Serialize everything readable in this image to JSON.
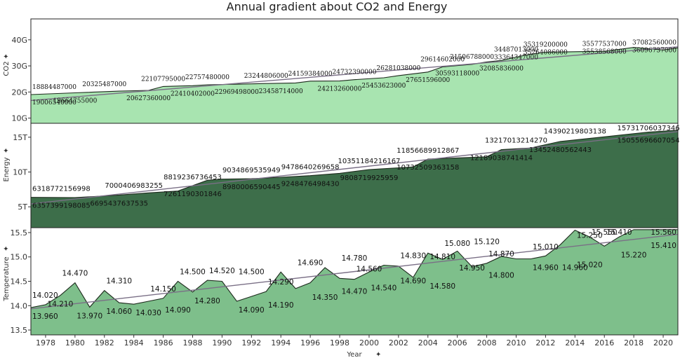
{
  "colors": {
    "co2_fill": "#a8e4b0",
    "energy_fill": "#3d6e4a",
    "temp_fill": "#7ebf8b",
    "trend": "#7a6f86"
  },
  "chart_data": {
    "type": "area",
    "title": "Annual gradient about CO2 and Energy",
    "xlabel": "Year",
    "x_ticks": [
      "1978",
      "1980",
      "1982",
      "1984",
      "1986",
      "1988",
      "1990",
      "1992",
      "1994",
      "1996",
      "1998",
      "2000",
      "2002",
      "2004",
      "2006",
      "2008",
      "2010",
      "2012",
      "2014",
      "2016",
      "2018",
      "2020"
    ],
    "years": [
      1977,
      1978,
      1979,
      1980,
      1981,
      1982,
      1983,
      1984,
      1985,
      1986,
      1987,
      1988,
      1989,
      1990,
      1991,
      1992,
      1993,
      1994,
      1995,
      1996,
      1997,
      1998,
      1999,
      2000,
      2001,
      2002,
      2003,
      2004,
      2005,
      2006,
      2007,
      2008,
      2009,
      2010,
      2011,
      2012,
      2013,
      2014,
      2015,
      2016,
      2017,
      2018,
      2019,
      2020,
      2021
    ],
    "panels": [
      {
        "name": "CO2",
        "ylabel": "CO2",
        "ylim": [
          8000000000,
          48000000000
        ],
        "yticks": [
          10000000000,
          20000000000,
          30000000000,
          40000000000
        ],
        "ytick_labels": [
          "10G",
          "20G",
          "30G",
          "40G"
        ],
        "series": [
          [
            1977,
            19006540000
          ],
          [
            1980,
            19664755000
          ],
          [
            1983,
            20325487000
          ],
          [
            1985,
            20627360000
          ],
          [
            1986,
            22107795000
          ],
          [
            1988,
            22410402000
          ],
          [
            1989,
            22757480000
          ],
          [
            1991,
            22969498000
          ],
          [
            1993,
            23244806000
          ],
          [
            1995,
            23458714000
          ],
          [
            1996,
            24159384000
          ],
          [
            1998,
            24213260000
          ],
          [
            1999,
            24732390000
          ],
          [
            2001,
            25453623000
          ],
          [
            2002,
            26281038000
          ],
          [
            2004,
            27651596000
          ],
          [
            2005,
            29614602000
          ],
          [
            2007,
            30593118000
          ],
          [
            2008,
            31506788000
          ],
          [
            2009,
            32085836000
          ],
          [
            2010,
            33364347000
          ],
          [
            2011,
            34487013000
          ],
          [
            2012,
            35264086000
          ],
          [
            2013,
            35319200000
          ],
          [
            2015,
            35538568000
          ],
          [
            2016,
            35577537000
          ],
          [
            2018,
            37082560000
          ],
          [
            2020,
            36096737000
          ],
          [
            2021,
            36900000000
          ]
        ],
        "labels": [
          {
            "year": 1977,
            "text": "18884487000",
            "pos": "above"
          },
          {
            "year": 1977,
            "text": "19006540000",
            "pos": "below"
          },
          {
            "year": 1980,
            "text": "19664755000",
            "pos": "below"
          },
          {
            "year": 1982,
            "text": "20325487000",
            "pos": "above"
          },
          {
            "year": 1985,
            "text": "20627360000",
            "pos": "below"
          },
          {
            "year": 1986,
            "text": "22107795000",
            "pos": "above"
          },
          {
            "year": 1988,
            "text": "22410402000",
            "pos": "below"
          },
          {
            "year": 1989,
            "text": "22757480000",
            "pos": "above"
          },
          {
            "year": 1991,
            "text": "22969498000",
            "pos": "below"
          },
          {
            "year": 1993,
            "text": "23244806000",
            "pos": "above"
          },
          {
            "year": 1994,
            "text": "23458714000",
            "pos": "below"
          },
          {
            "year": 1996,
            "text": "24159384000",
            "pos": "above"
          },
          {
            "year": 1998,
            "text": "24213260000",
            "pos": "below"
          },
          {
            "year": 1999,
            "text": "24732390000",
            "pos": "above"
          },
          {
            "year": 2001,
            "text": "25453623000",
            "pos": "below"
          },
          {
            "year": 2002,
            "text": "26281038000",
            "pos": "above"
          },
          {
            "year": 2004,
            "text": "27651596000",
            "pos": "below"
          },
          {
            "year": 2005,
            "text": "29614602000",
            "pos": "above"
          },
          {
            "year": 2006,
            "text": "30593118000",
            "pos": "below"
          },
          {
            "year": 2007,
            "text": "31506788000",
            "pos": "above"
          },
          {
            "year": 2009,
            "text": "32085836000",
            "pos": "below"
          },
          {
            "year": 2010,
            "text": "34487013000",
            "pos": "above"
          },
          {
            "year": 2010,
            "text": "33364347000",
            "pos": "mid"
          },
          {
            "year": 2012,
            "text": "35319200000",
            "pos": "above"
          },
          {
            "year": 2012,
            "text": "35264086000",
            "pos": "mid"
          },
          {
            "year": 2016,
            "text": "35577537000",
            "pos": "above"
          },
          {
            "year": 2016,
            "text": "35538568000",
            "pos": "mid"
          },
          {
            "year": 2020,
            "text": "37082560000",
            "pos": "above"
          },
          {
            "year": 2020,
            "text": "36096737000",
            "pos": "mid"
          }
        ]
      },
      {
        "name": "Energy",
        "ylabel": "Energy",
        "ylim": [
          2000000000000,
          17000000000000
        ],
        "yticks": [
          5000000000000,
          10000000000000,
          15000000000000
        ],
        "ytick_labels": [
          "5T",
          "10T",
          "15T"
        ],
        "series": [
          [
            1977,
            6357399198085
          ],
          [
            1980,
            6318772156998
          ],
          [
            1983,
            6695437637535
          ],
          [
            1985,
            7000406983255
          ],
          [
            1987,
            7261190301846
          ],
          [
            1989,
            8819236736453
          ],
          [
            1990,
            8980006590445
          ],
          [
            1992,
            9034869535949
          ],
          [
            1994,
            9248476498430
          ],
          [
            1996,
            9478640269658
          ],
          [
            1998,
            9808719925959
          ],
          [
            2000,
            10351184216167
          ],
          [
            2003,
            10732509363158
          ],
          [
            2004,
            11856689912867
          ],
          [
            2008,
            12189038741414
          ],
          [
            2009,
            13217013214270
          ],
          [
            2011,
            13452480562443
          ],
          [
            2013,
            14390219803138
          ],
          [
            2016,
            15055696607054
          ],
          [
            2019,
            15731706037346
          ],
          [
            2021,
            16000000000000
          ]
        ],
        "labels": [
          {
            "year": 1977,
            "text": "6318772156998",
            "pos": "above"
          },
          {
            "year": 1977,
            "text": "6357399198085",
            "pos": "below"
          },
          {
            "year": 1984,
            "text": "7000406983255",
            "pos": "above"
          },
          {
            "year": 1983,
            "text": "6695437637535",
            "pos": "below"
          },
          {
            "year": 1988,
            "text": "8819236736453",
            "pos": "above"
          },
          {
            "year": 1988,
            "text": "7261190301846",
            "pos": "below"
          },
          {
            "year": 1992,
            "text": "9034869535949",
            "pos": "above"
          },
          {
            "year": 1992,
            "text": "8980006590445",
            "pos": "below"
          },
          {
            "year": 1996,
            "text": "9478640269658",
            "pos": "above"
          },
          {
            "year": 1996,
            "text": "9248476498430",
            "pos": "below"
          },
          {
            "year": 2000,
            "text": "10351184216167",
            "pos": "above"
          },
          {
            "year": 2000,
            "text": "9808719925959",
            "pos": "below"
          },
          {
            "year": 2004,
            "text": "11856689912867",
            "pos": "above"
          },
          {
            "year": 2004,
            "text": "10732509363158",
            "pos": "below"
          },
          {
            "year": 2010,
            "text": "13217013214270",
            "pos": "above"
          },
          {
            "year": 2009,
            "text": "12189038741414",
            "pos": "below"
          },
          {
            "year": 2014,
            "text": "14390219803138",
            "pos": "above"
          },
          {
            "year": 2013,
            "text": "13452480562443",
            "pos": "below"
          },
          {
            "year": 2019,
            "text": "15731706037346",
            "pos": "above"
          },
          {
            "year": 2019,
            "text": "15055696607054",
            "pos": "below"
          }
        ]
      },
      {
        "name": "Temperature",
        "ylabel": "Temperature",
        "ylim": [
          13.4,
          15.6
        ],
        "yticks": [
          13.5,
          14.0,
          14.5,
          15.0,
          15.5
        ],
        "ytick_labels": [
          "13.5",
          "14.0",
          "14.5",
          "15.0",
          "15.5"
        ],
        "series": [
          [
            1977,
            13.96
          ],
          [
            1978,
            14.02
          ],
          [
            1979,
            14.21
          ],
          [
            1980,
            14.47
          ],
          [
            1981,
            13.97
          ],
          [
            1982,
            14.31
          ],
          [
            1983,
            14.06
          ],
          [
            1984,
            14.03
          ],
          [
            1985,
            14.09
          ],
          [
            1986,
            14.15
          ],
          [
            1987,
            14.5
          ],
          [
            1988,
            14.28
          ],
          [
            1989,
            14.52
          ],
          [
            1990,
            14.5
          ],
          [
            1991,
            14.09
          ],
          [
            1992,
            14.19
          ],
          [
            1993,
            14.29
          ],
          [
            1994,
            14.69
          ],
          [
            1995,
            14.35
          ],
          [
            1996,
            14.47
          ],
          [
            1997,
            14.78
          ],
          [
            1998,
            14.56
          ],
          [
            1999,
            14.54
          ],
          [
            2000,
            14.69
          ],
          [
            2001,
            14.83
          ],
          [
            2002,
            14.81
          ],
          [
            2003,
            14.58
          ],
          [
            2004,
            15.08
          ],
          [
            2005,
            14.95
          ],
          [
            2006,
            15.12
          ],
          [
            2007,
            14.8
          ],
          [
            2008,
            14.87
          ],
          [
            2009,
            15.01
          ],
          [
            2010,
            14.96
          ],
          [
            2011,
            14.96
          ],
          [
            2012,
            15.02
          ],
          [
            2013,
            15.25
          ],
          [
            2014,
            15.55
          ],
          [
            2015,
            15.41
          ],
          [
            2016,
            15.22
          ],
          [
            2017,
            15.41
          ],
          [
            2018,
            15.56
          ],
          [
            2021,
            15.56
          ]
        ],
        "labels": [
          {
            "x": 1977,
            "y": 13.96,
            "text": "13.960",
            "pos": "below"
          },
          {
            "x": 1978,
            "y": 14.02,
            "text": "14.020",
            "pos": "above"
          },
          {
            "x": 1979,
            "y": 14.21,
            "text": "14.210",
            "pos": "below"
          },
          {
            "x": 1980,
            "y": 14.47,
            "text": "14.470",
            "pos": "above"
          },
          {
            "x": 1981,
            "y": 13.97,
            "text": "13.970",
            "pos": "below"
          },
          {
            "x": 1983,
            "y": 14.31,
            "text": "14.310",
            "pos": "above"
          },
          {
            "x": 1983,
            "y": 14.06,
            "text": "14.060",
            "pos": "below"
          },
          {
            "x": 1985,
            "y": 14.03,
            "text": "14.030",
            "pos": "below"
          },
          {
            "x": 1986,
            "y": 14.15,
            "text": "14.150",
            "pos": "above"
          },
          {
            "x": 1987,
            "y": 14.09,
            "text": "14.090",
            "pos": "below"
          },
          {
            "x": 1988,
            "y": 14.5,
            "text": "14.500",
            "pos": "above"
          },
          {
            "x": 1989,
            "y": 14.28,
            "text": "14.280",
            "pos": "below"
          },
          {
            "x": 1990,
            "y": 14.52,
            "text": "14.520",
            "pos": "above"
          },
          {
            "x": 1992,
            "y": 14.5,
            "text": "14.500",
            "pos": "above"
          },
          {
            "x": 1992,
            "y": 14.09,
            "text": "14.090",
            "pos": "below"
          },
          {
            "x": 1994,
            "y": 14.29,
            "text": "14.290",
            "pos": "above"
          },
          {
            "x": 1994,
            "y": 14.19,
            "text": "14.190",
            "pos": "below"
          },
          {
            "x": 1996,
            "y": 14.69,
            "text": "14.690",
            "pos": "above"
          },
          {
            "x": 1997,
            "y": 14.35,
            "text": "14.350",
            "pos": "below"
          },
          {
            "x": 1999,
            "y": 14.78,
            "text": "14.780",
            "pos": "above"
          },
          {
            "x": 1999,
            "y": 14.47,
            "text": "14.470",
            "pos": "below"
          },
          {
            "x": 2000,
            "y": 14.56,
            "text": "14.560",
            "pos": "above"
          },
          {
            "x": 2001,
            "y": 14.54,
            "text": "14.540",
            "pos": "below"
          },
          {
            "x": 2003,
            "y": 14.83,
            "text": "14.830",
            "pos": "above"
          },
          {
            "x": 2003,
            "y": 14.69,
            "text": "14.690",
            "pos": "below"
          },
          {
            "x": 2005,
            "y": 14.81,
            "text": "14.810",
            "pos": "above"
          },
          {
            "x": 2005,
            "y": 14.58,
            "text": "14.580",
            "pos": "below"
          },
          {
            "x": 2006,
            "y": 15.08,
            "text": "15.080",
            "pos": "above"
          },
          {
            "x": 2007,
            "y": 14.95,
            "text": "14.950",
            "pos": "below"
          },
          {
            "x": 2008,
            "y": 15.12,
            "text": "15.120",
            "pos": "above"
          },
          {
            "x": 2009,
            "y": 14.87,
            "text": "14.870",
            "pos": "above"
          },
          {
            "x": 2009,
            "y": 14.8,
            "text": "14.800",
            "pos": "below"
          },
          {
            "x": 2012,
            "y": 15.01,
            "text": "15.010",
            "pos": "above"
          },
          {
            "x": 2012,
            "y": 14.96,
            "text": "14.960",
            "pos": "below"
          },
          {
            "x": 2014,
            "y": 14.96,
            "text": "14.960",
            "pos": "below"
          },
          {
            "x": 2015,
            "y": 15.25,
            "text": "15.250",
            "pos": "above"
          },
          {
            "x": 2015,
            "y": 15.02,
            "text": "15.020",
            "pos": "below"
          },
          {
            "x": 2016,
            "y": 15.55,
            "text": "15.550",
            "pos": "above"
          },
          {
            "x": 2017,
            "y": 15.41,
            "text": "15.410",
            "pos": "above"
          },
          {
            "x": 2018,
            "y": 15.22,
            "text": "15.220",
            "pos": "below"
          },
          {
            "x": 2020,
            "y": 15.56,
            "text": "15.560",
            "pos": "above"
          },
          {
            "x": 2020,
            "y": 15.41,
            "text": "15.410",
            "pos": "below"
          }
        ]
      }
    ]
  }
}
